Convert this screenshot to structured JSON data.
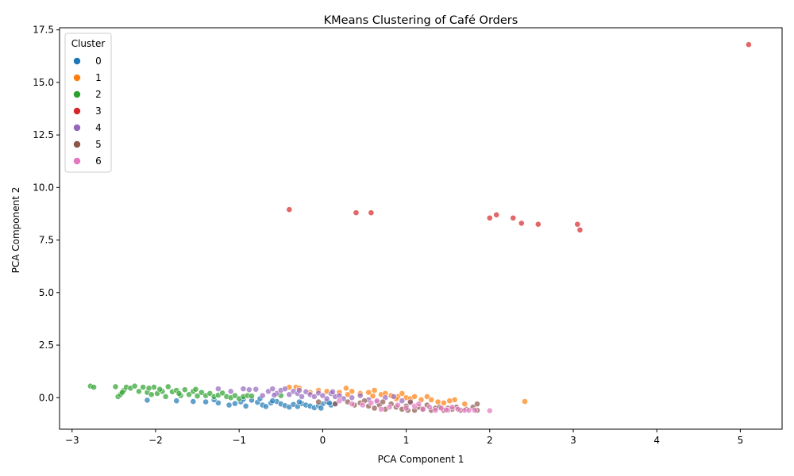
{
  "chart_data": {
    "type": "scatter",
    "title": "KMeans Clustering of Café Orders",
    "xlabel": "PCA Component 1",
    "ylabel": "PCA Component 2",
    "xlim": [
      -3.15,
      5.5
    ],
    "ylim": [
      -1.5,
      17.6
    ],
    "xticks": [
      -3,
      -2,
      -1,
      0,
      1,
      2,
      3,
      4,
      5
    ],
    "yticks": [
      0.0,
      2.5,
      5.0,
      7.5,
      10.0,
      12.5,
      15.0,
      17.5
    ],
    "ytick_labels": [
      "0.0",
      "2.5",
      "5.0",
      "7.5",
      "10.0",
      "12.5",
      "15.0",
      "17.5"
    ],
    "grid": false,
    "legend": {
      "title": "Cluster",
      "placement": "top-left"
    },
    "series": [
      {
        "name": "0",
        "color": "#1f77b4",
        "points": [
          [
            -2.1,
            -0.12
          ],
          [
            -1.75,
            -0.15
          ],
          [
            -1.55,
            -0.18
          ],
          [
            -1.4,
            -0.2
          ],
          [
            -1.25,
            -0.25
          ],
          [
            -1.12,
            -0.35
          ],
          [
            -1.05,
            -0.28
          ],
          [
            -0.98,
            -0.2
          ],
          [
            -0.92,
            -0.4
          ],
          [
            -0.85,
            -0.12
          ],
          [
            -0.78,
            -0.22
          ],
          [
            -0.72,
            -0.35
          ],
          [
            -0.68,
            -0.42
          ],
          [
            -0.62,
            -0.25
          ],
          [
            -0.55,
            -0.18
          ],
          [
            -0.5,
            -0.3
          ],
          [
            -0.45,
            -0.38
          ],
          [
            -0.4,
            -0.45
          ],
          [
            -0.35,
            -0.32
          ],
          [
            -0.3,
            -0.42
          ],
          [
            -0.25,
            -0.28
          ],
          [
            -0.2,
            -0.35
          ],
          [
            -0.15,
            -0.4
          ],
          [
            -0.1,
            -0.48
          ],
          [
            -0.05,
            -0.38
          ],
          [
            0.0,
            -0.3
          ],
          [
            0.05,
            -0.2
          ],
          [
            0.1,
            -0.35
          ],
          [
            0.15,
            -0.28
          ],
          [
            -0.75,
            -0.05
          ],
          [
            -0.95,
            -0.08
          ],
          [
            -1.3,
            -0.1
          ],
          [
            -0.6,
            -0.15
          ],
          [
            -0.28,
            -0.2
          ],
          [
            0.08,
            -0.25
          ],
          [
            -0.02,
            -0.5
          ]
        ]
      },
      {
        "name": "1",
        "color": "#ff7f0e",
        "points": [
          [
            -0.4,
            0.5
          ],
          [
            -0.32,
            0.5
          ],
          [
            -0.28,
            0.45
          ],
          [
            -0.05,
            0.35
          ],
          [
            0.05,
            0.3
          ],
          [
            0.2,
            0.25
          ],
          [
            0.28,
            0.45
          ],
          [
            0.35,
            0.3
          ],
          [
            0.45,
            0.2
          ],
          [
            0.55,
            0.25
          ],
          [
            0.62,
            0.35
          ],
          [
            0.7,
            0.15
          ],
          [
            0.75,
            0.2
          ],
          [
            0.82,
            0.1
          ],
          [
            0.9,
            0.05
          ],
          [
            0.95,
            0.2
          ],
          [
            1.0,
            0.0
          ],
          [
            1.05,
            -0.05
          ],
          [
            1.1,
            0.05
          ],
          [
            1.18,
            -0.1
          ],
          [
            1.25,
            0.05
          ],
          [
            1.3,
            -0.1
          ],
          [
            1.38,
            -0.2
          ],
          [
            1.45,
            -0.25
          ],
          [
            1.52,
            -0.15
          ],
          [
            1.58,
            -0.1
          ],
          [
            1.7,
            -0.3
          ],
          [
            2.42,
            -0.18
          ],
          [
            0.3,
            0.15
          ],
          [
            0.6,
            0.08
          ],
          [
            -0.15,
            0.25
          ],
          [
            0.88,
            -0.05
          ]
        ]
      },
      {
        "name": "2",
        "color": "#2ca02c",
        "points": [
          [
            -2.78,
            0.55
          ],
          [
            -2.74,
            0.5
          ],
          [
            -2.48,
            0.52
          ],
          [
            -2.45,
            0.05
          ],
          [
            -2.42,
            0.15
          ],
          [
            -2.38,
            0.35
          ],
          [
            -2.35,
            0.5
          ],
          [
            -2.3,
            0.45
          ],
          [
            -2.25,
            0.55
          ],
          [
            -2.2,
            0.3
          ],
          [
            -2.15,
            0.5
          ],
          [
            -2.1,
            0.25
          ],
          [
            -2.05,
            0.15
          ],
          [
            -2.02,
            0.5
          ],
          [
            -1.98,
            0.2
          ],
          [
            -1.92,
            0.3
          ],
          [
            -1.88,
            0.05
          ],
          [
            -1.85,
            0.52
          ],
          [
            -1.8,
            0.28
          ],
          [
            -1.75,
            0.35
          ],
          [
            -1.7,
            0.1
          ],
          [
            -1.65,
            0.38
          ],
          [
            -1.6,
            0.15
          ],
          [
            -1.55,
            0.3
          ],
          [
            -1.5,
            0.08
          ],
          [
            -1.45,
            0.25
          ],
          [
            -1.4,
            0.1
          ],
          [
            -1.35,
            0.2
          ],
          [
            -1.3,
            0.05
          ],
          [
            -1.25,
            0.12
          ],
          [
            -1.2,
            0.22
          ],
          [
            -1.15,
            0.05
          ],
          [
            -1.1,
            0.0
          ],
          [
            -1.05,
            0.1
          ],
          [
            -1.0,
            -0.05
          ],
          [
            -0.95,
            0.05
          ],
          [
            -0.9,
            0.1
          ],
          [
            -0.85,
            0.08
          ],
          [
            -0.5,
            0.1
          ],
          [
            -2.4,
            0.25
          ],
          [
            -2.08,
            0.45
          ],
          [
            -1.72,
            0.2
          ],
          [
            -1.52,
            0.4
          ],
          [
            -1.95,
            0.4
          ]
        ]
      },
      {
        "name": "3",
        "color": "#d62728",
        "points": [
          [
            5.1,
            16.8
          ],
          [
            -0.4,
            8.95
          ],
          [
            0.4,
            8.8
          ],
          [
            0.58,
            8.8
          ],
          [
            2.0,
            8.55
          ],
          [
            2.08,
            8.7
          ],
          [
            2.28,
            8.55
          ],
          [
            2.38,
            8.3
          ],
          [
            2.58,
            8.25
          ],
          [
            3.05,
            8.25
          ],
          [
            3.08,
            7.98
          ]
        ]
      },
      {
        "name": "4",
        "color": "#9467bd",
        "points": [
          [
            -1.25,
            0.42
          ],
          [
            -1.1,
            0.3
          ],
          [
            -0.95,
            0.42
          ],
          [
            -0.88,
            0.38
          ],
          [
            -0.8,
            0.4
          ],
          [
            -0.72,
            0.1
          ],
          [
            -0.65,
            0.3
          ],
          [
            -0.6,
            0.42
          ],
          [
            -0.55,
            0.2
          ],
          [
            -0.5,
            0.35
          ],
          [
            -0.45,
            0.42
          ],
          [
            -0.4,
            0.15
          ],
          [
            -0.35,
            0.3
          ],
          [
            -0.3,
            0.2
          ],
          [
            -0.25,
            0.05
          ],
          [
            -0.2,
            0.28
          ],
          [
            -0.15,
            0.15
          ],
          [
            -0.1,
            0.05
          ],
          [
            -0.05,
            0.22
          ],
          [
            0.0,
            0.1
          ],
          [
            0.05,
            -0.05
          ],
          [
            0.1,
            0.2
          ],
          [
            0.15,
            0.05
          ],
          [
            0.2,
            0.1
          ],
          [
            0.25,
            -0.05
          ],
          [
            0.35,
            0.0
          ],
          [
            0.45,
            0.1
          ],
          [
            0.55,
            -0.1
          ],
          [
            0.65,
            -0.2
          ],
          [
            0.75,
            0.0
          ],
          [
            0.85,
            0.05
          ],
          [
            0.95,
            -0.15
          ],
          [
            1.05,
            -0.25
          ],
          [
            -0.58,
            0.12
          ],
          [
            -0.28,
            0.35
          ],
          [
            0.12,
            0.28
          ]
        ]
      },
      {
        "name": "5",
        "color": "#8c564b",
        "points": [
          [
            -0.05,
            -0.2
          ],
          [
            0.15,
            -0.3
          ],
          [
            0.3,
            -0.2
          ],
          [
            0.38,
            -0.35
          ],
          [
            0.45,
            -0.25
          ],
          [
            0.55,
            -0.4
          ],
          [
            0.62,
            -0.5
          ],
          [
            0.68,
            -0.35
          ],
          [
            0.75,
            -0.55
          ],
          [
            0.82,
            -0.3
          ],
          [
            0.88,
            -0.45
          ],
          [
            0.95,
            -0.55
          ],
          [
            1.0,
            -0.4
          ],
          [
            1.05,
            -0.2
          ],
          [
            1.1,
            -0.6
          ],
          [
            1.15,
            -0.45
          ],
          [
            1.2,
            -0.55
          ],
          [
            1.25,
            -0.35
          ],
          [
            1.3,
            -0.6
          ],
          [
            1.35,
            -0.5
          ],
          [
            1.4,
            -0.45
          ],
          [
            1.45,
            -0.6
          ],
          [
            1.5,
            -0.5
          ],
          [
            1.55,
            -0.55
          ],
          [
            1.6,
            -0.45
          ],
          [
            1.65,
            -0.6
          ],
          [
            1.72,
            -0.55
          ],
          [
            1.8,
            -0.45
          ],
          [
            1.85,
            -0.3
          ],
          [
            1.85,
            -0.6
          ],
          [
            0.72,
            -0.2
          ],
          [
            0.5,
            -0.15
          ],
          [
            1.02,
            -0.6
          ]
        ]
      },
      {
        "name": "6",
        "color": "#e377c2",
        "points": [
          [
            0.2,
            -0.15
          ],
          [
            0.35,
            -0.3
          ],
          [
            0.48,
            -0.35
          ],
          [
            0.58,
            -0.25
          ],
          [
            0.7,
            -0.55
          ],
          [
            0.8,
            -0.45
          ],
          [
            0.9,
            -0.35
          ],
          [
            1.0,
            -0.5
          ],
          [
            1.1,
            -0.4
          ],
          [
            1.2,
            -0.55
          ],
          [
            1.28,
            -0.45
          ],
          [
            1.35,
            -0.6
          ],
          [
            1.42,
            -0.5
          ],
          [
            1.5,
            -0.6
          ],
          [
            1.55,
            -0.45
          ],
          [
            1.62,
            -0.55
          ],
          [
            1.7,
            -0.6
          ],
          [
            1.75,
            -0.6
          ],
          [
            1.82,
            -0.6
          ],
          [
            2.0,
            -0.62
          ],
          [
            0.65,
            -0.15
          ],
          [
            1.15,
            -0.3
          ],
          [
            1.48,
            -0.58
          ]
        ]
      }
    ]
  }
}
